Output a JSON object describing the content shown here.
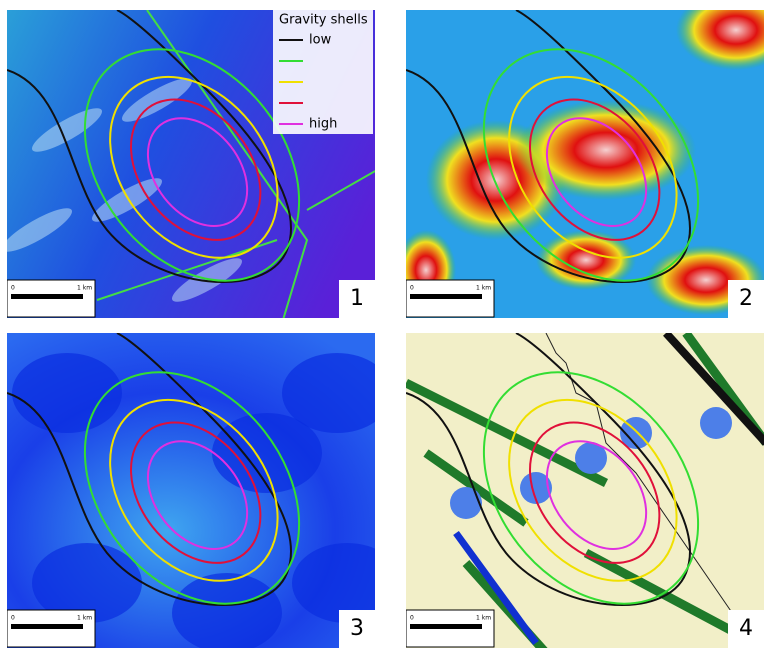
{
  "legend": {
    "title": "Gravity shells",
    "labels": [
      "low",
      "high"
    ]
  },
  "panels": [
    {
      "number": "1",
      "scale": [
        "0",
        "1 km"
      ]
    },
    {
      "number": "2",
      "scale": [
        "0",
        "1 km"
      ]
    },
    {
      "number": "3",
      "scale": [
        "0",
        "1 km"
      ]
    },
    {
      "number": "4",
      "scale": [
        "0",
        "1 km"
      ]
    }
  ]
}
